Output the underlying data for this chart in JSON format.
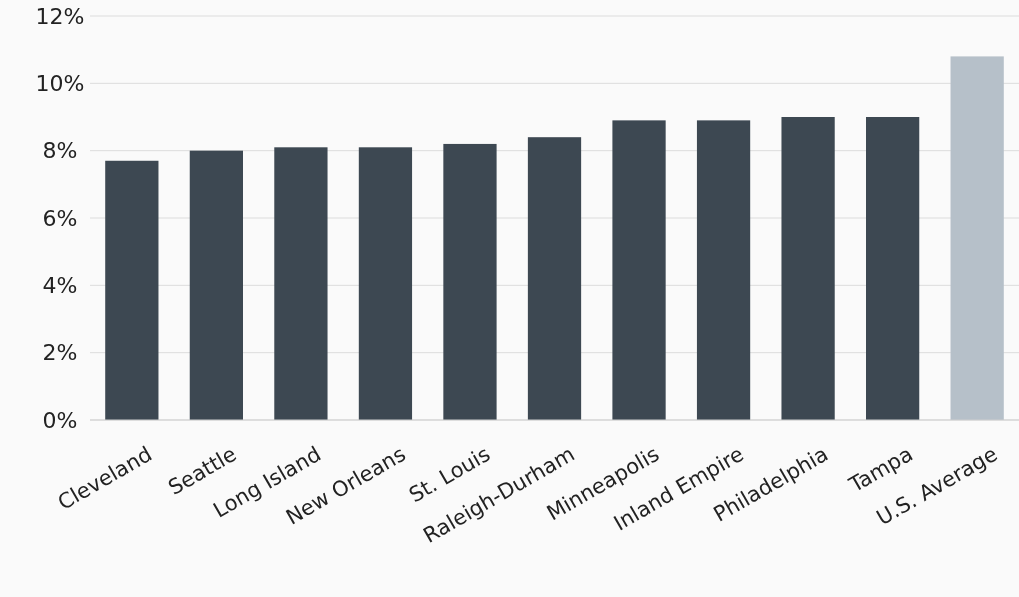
{
  "chart_data": {
    "type": "bar",
    "categories": [
      "Cleveland",
      "Seattle",
      "Long Island",
      "New Orleans",
      "St. Louis",
      "Raleigh-Durham",
      "Minneapolis",
      "Inland Empire",
      "Philadelphia",
      "Tampa",
      "U.S. Average"
    ],
    "values": [
      7.7,
      8.0,
      8.1,
      8.1,
      8.2,
      8.4,
      8.9,
      8.9,
      9.0,
      9.0,
      10.8
    ],
    "colors": [
      "#3d4852",
      "#3d4852",
      "#3d4852",
      "#3d4852",
      "#3d4852",
      "#3d4852",
      "#3d4852",
      "#3d4852",
      "#3d4852",
      "#3d4852",
      "#b6c0c9"
    ],
    "ylim": [
      0,
      12
    ],
    "yticks": [
      {
        "value": 0,
        "label": "0%"
      },
      {
        "value": 2,
        "label": "2%"
      },
      {
        "value": 4,
        "label": "4%"
      },
      {
        "value": 6,
        "label": "6%"
      },
      {
        "value": 8,
        "label": "8%"
      },
      {
        "value": 10,
        "label": "10%"
      },
      {
        "value": 12,
        "label": "12%"
      }
    ],
    "grid": "y"
  }
}
